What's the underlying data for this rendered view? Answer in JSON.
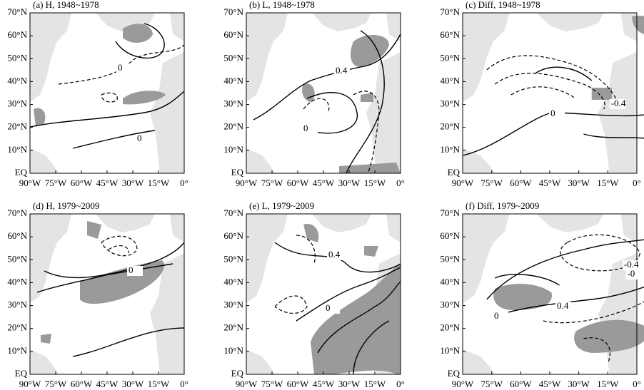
{
  "panels": [
    {
      "title": "(a) H, 1948~1978",
      "contour_labels": [
        "0",
        "0"
      ]
    },
    {
      "title": "(b) L, 1948~1978",
      "contour_labels": [
        "0.4",
        "0"
      ]
    },
    {
      "title": "(c) Diff, 1948~1978",
      "contour_labels": [
        "0",
        "-0.4"
      ]
    },
    {
      "title": "(d) H, 1979~2009",
      "contour_labels": [
        "0"
      ]
    },
    {
      "title": "(e) L, 1979~2009",
      "contour_labels": [
        "0.4",
        "0"
      ]
    },
    {
      "title": "(f) Diff, 1979~2009",
      "contour_labels": [
        "-0.4",
        "-0",
        "0.4",
        "0"
      ]
    }
  ],
  "x_tick_labels": [
    "90°W",
    "75°W",
    "60°W",
    "45°W",
    "30°W",
    "15°W",
    "0°"
  ],
  "y_tick_labels": [
    "70°N",
    "60°N",
    "50°N",
    "40°N",
    "30°N",
    "20°N",
    "10°N",
    "EQ"
  ]
}
